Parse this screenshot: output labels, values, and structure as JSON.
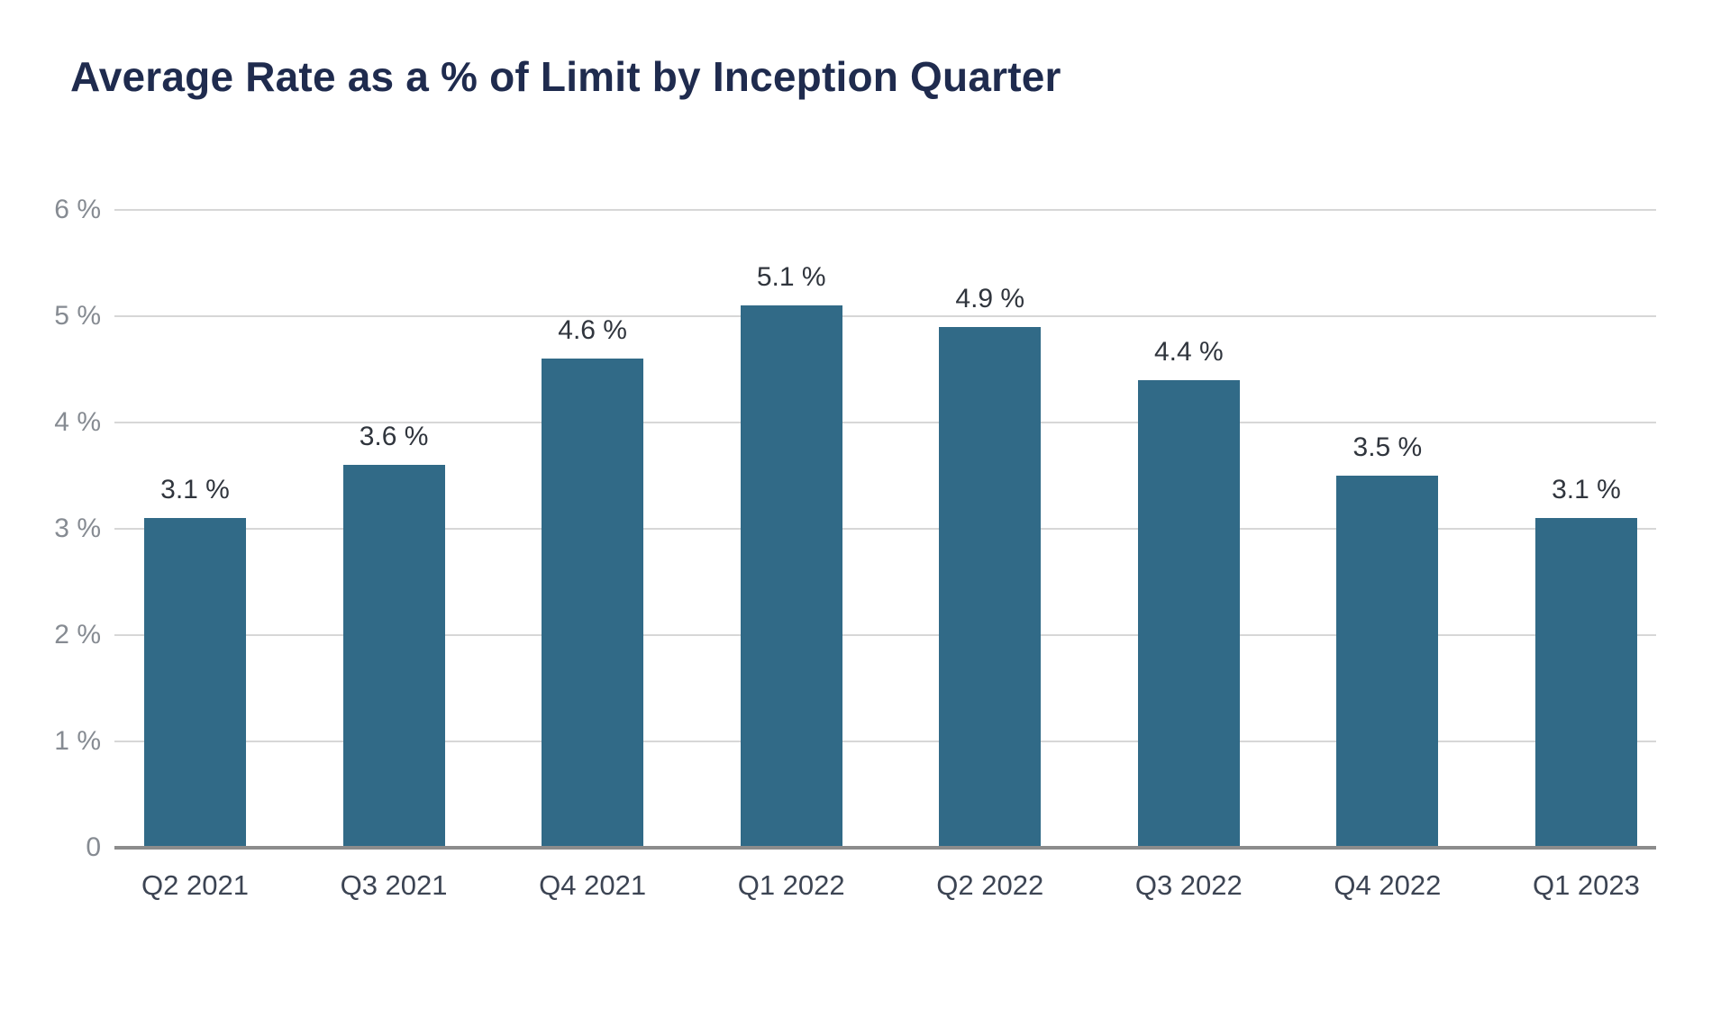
{
  "page": {
    "title": "Average Rate as a % of Limit by Inception Quarter"
  },
  "colors": {
    "bar": "#316a87",
    "title_text": "#1f2b4e",
    "y_tick_text": "#868b92",
    "x_tick_text": "#3c4453",
    "value_label_text": "#30353d",
    "gridline": "#d7d7d7",
    "baseline": "#8c8c8c",
    "background": "#ffffff"
  },
  "chart_data": {
    "type": "bar",
    "title": "Average Rate as a % of Limit by Inception Quarter",
    "xlabel": "",
    "ylabel": "",
    "categories": [
      "Q2 2021",
      "Q3 2021",
      "Q4 2021",
      "Q1 2022",
      "Q2 2022",
      "Q3 2022",
      "Q4 2022",
      "Q1 2023"
    ],
    "values": [
      3.1,
      3.6,
      4.6,
      5.1,
      4.9,
      4.4,
      3.5,
      3.1
    ],
    "value_labels": [
      "3.1 %",
      "3.6 %",
      "4.6 %",
      "5.1 %",
      "4.9 %",
      "4.4 %",
      "3.5 %",
      "3.1 %"
    ],
    "ylim": [
      0,
      6
    ],
    "y_ticks": [
      {
        "value": 6,
        "label": "6 %"
      },
      {
        "value": 5,
        "label": "5 %"
      },
      {
        "value": 4,
        "label": "4 %"
      },
      {
        "value": 3,
        "label": "3 %"
      },
      {
        "value": 2,
        "label": "2 %"
      },
      {
        "value": 1,
        "label": "1 %"
      },
      {
        "value": 0,
        "label": "0"
      }
    ],
    "grid": true,
    "legend": "none",
    "bar_color": "#316a87"
  }
}
